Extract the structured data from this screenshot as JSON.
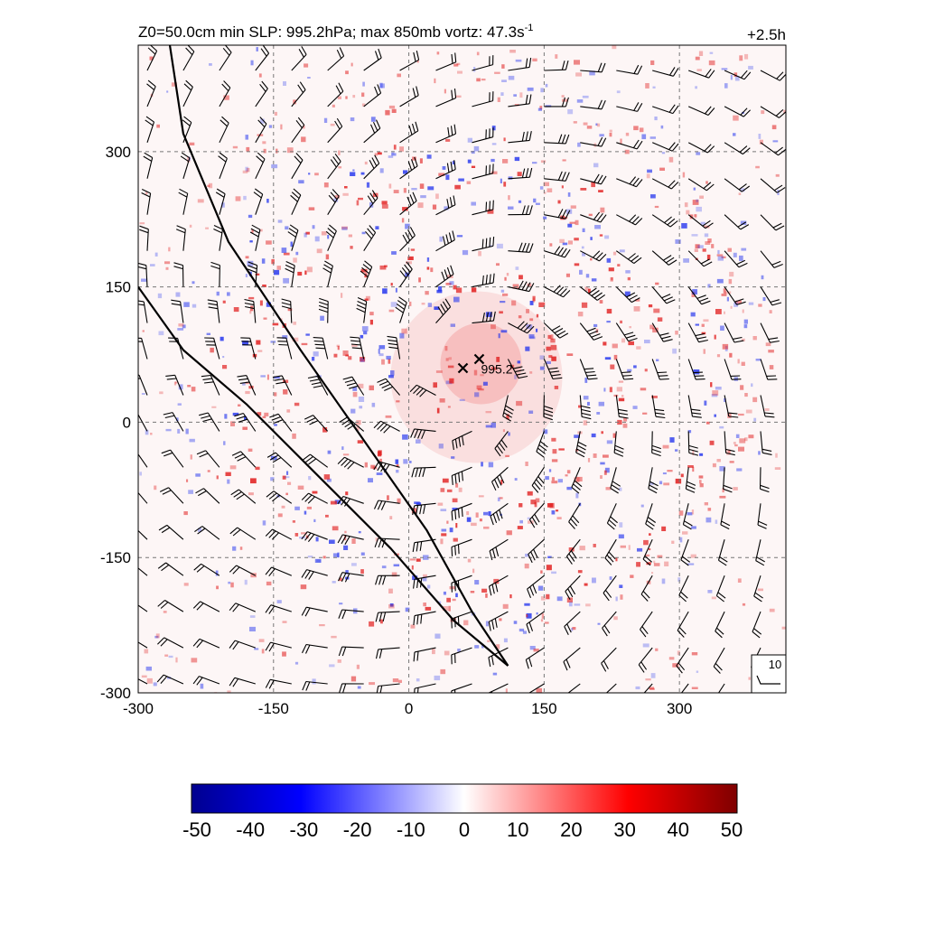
{
  "header": {
    "title_main": "Z0=50.0cm  min SLP: 995.2hPa; max 850mb vortz:  47.3s",
    "title_exp": "-1",
    "time": "+2.5h"
  },
  "chart_data": {
    "type": "heatmap",
    "field": "850mb relative vorticity (shaded) with wind barbs",
    "x_ticks": [
      -300,
      -150,
      0,
      150,
      300
    ],
    "y_ticks": [
      -300,
      -150,
      0,
      150,
      300
    ],
    "xlim": [
      -300,
      418
    ],
    "ylim": [
      -300,
      418
    ],
    "grid": true,
    "grid_style": "dashed",
    "storm_center_marker": {
      "x": 60,
      "y": 60,
      "symbol": "x"
    },
    "min_slp_marker": {
      "x": 78,
      "y": 70,
      "symbol": "x",
      "label": "995.2"
    },
    "front_lines": [
      {
        "points": [
          [
            -265,
            418
          ],
          [
            -250,
            320
          ],
          [
            -200,
            200
          ],
          [
            -120,
            80
          ],
          [
            -50,
            -20
          ],
          [
            20,
            -120
          ],
          [
            70,
            -210
          ],
          [
            110,
            -270
          ]
        ]
      },
      {
        "points": [
          [
            -300,
            150
          ],
          [
            -250,
            80
          ],
          [
            -180,
            20
          ],
          [
            -100,
            -60
          ],
          [
            -20,
            -140
          ],
          [
            50,
            -220
          ],
          [
            110,
            -270
          ]
        ]
      }
    ],
    "barb_reference": {
      "label": "10",
      "speed": 10
    },
    "colorbar": {
      "ticks": [
        "-50",
        "-40",
        "-30",
        "-20",
        "-10",
        "0",
        "10",
        "20",
        "30",
        "40",
        "50"
      ],
      "min": -50,
      "max": 50,
      "colors": [
        "#00008f",
        "#0000ff",
        "#ffffff",
        "#ff0000",
        "#7f0000"
      ]
    }
  }
}
